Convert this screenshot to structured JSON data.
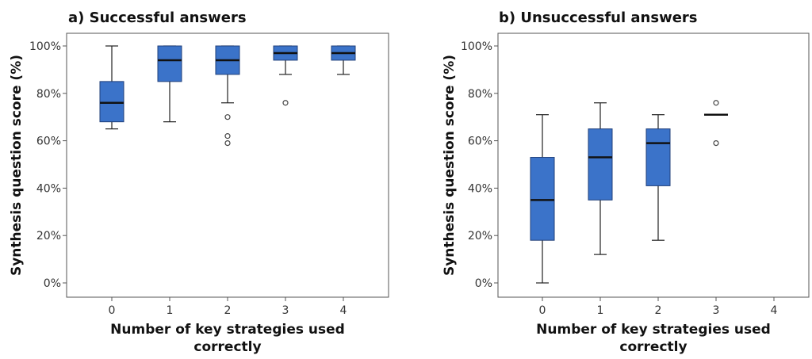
{
  "chart_data": [
    {
      "type": "box",
      "title": "a) Successful answers",
      "xlabel": "Number of key strategies used correctly",
      "ylabel": "Synthesis question score (%)",
      "categories": [
        "0",
        "1",
        "2",
        "3",
        "4"
      ],
      "y_ticks": [
        "0%",
        "20%",
        "40%",
        "60%",
        "80%",
        "100%"
      ],
      "ylim": [
        0,
        100
      ],
      "box_color": "#3b73c9",
      "boxes": [
        {
          "category": "0",
          "whisker_low": 65,
          "q1": 68,
          "median": 76,
          "q3": 85,
          "whisker_high": 100,
          "outliers": []
        },
        {
          "category": "1",
          "whisker_low": 68,
          "q1": 85,
          "median": 94,
          "q3": 100,
          "whisker_high": 100,
          "outliers": []
        },
        {
          "category": "2",
          "whisker_low": 76,
          "q1": 88,
          "median": 94,
          "q3": 100,
          "whisker_high": 100,
          "outliers": [
            70,
            62,
            59
          ]
        },
        {
          "category": "3",
          "whisker_low": 88,
          "q1": 94,
          "median": 97,
          "q3": 100,
          "whisker_high": 100,
          "outliers": [
            76
          ]
        },
        {
          "category": "4",
          "whisker_low": 88,
          "q1": 94,
          "median": 97,
          "q3": 100,
          "whisker_high": 100,
          "outliers": []
        }
      ]
    },
    {
      "type": "box",
      "title": "b) Unsuccessful answers",
      "xlabel": "Number of key strategies used correctly",
      "ylabel": "Synthesis question score (%)",
      "categories": [
        "0",
        "1",
        "2",
        "3",
        "4"
      ],
      "y_ticks": [
        "0%",
        "20%",
        "40%",
        "60%",
        "80%",
        "100%"
      ],
      "ylim": [
        0,
        100
      ],
      "box_color": "#3b73c9",
      "boxes": [
        {
          "category": "0",
          "whisker_low": 0,
          "q1": 18,
          "median": 35,
          "q3": 53,
          "whisker_high": 71,
          "outliers": []
        },
        {
          "category": "1",
          "whisker_low": 12,
          "q1": 35,
          "median": 53,
          "q3": 65,
          "whisker_high": 76,
          "outliers": []
        },
        {
          "category": "2",
          "whisker_low": 18,
          "q1": 41,
          "median": 59,
          "q3": 65,
          "whisker_high": 71,
          "outliers": []
        },
        {
          "category": "3",
          "median": 71,
          "outliers": [
            76,
            59
          ]
        }
      ]
    }
  ]
}
